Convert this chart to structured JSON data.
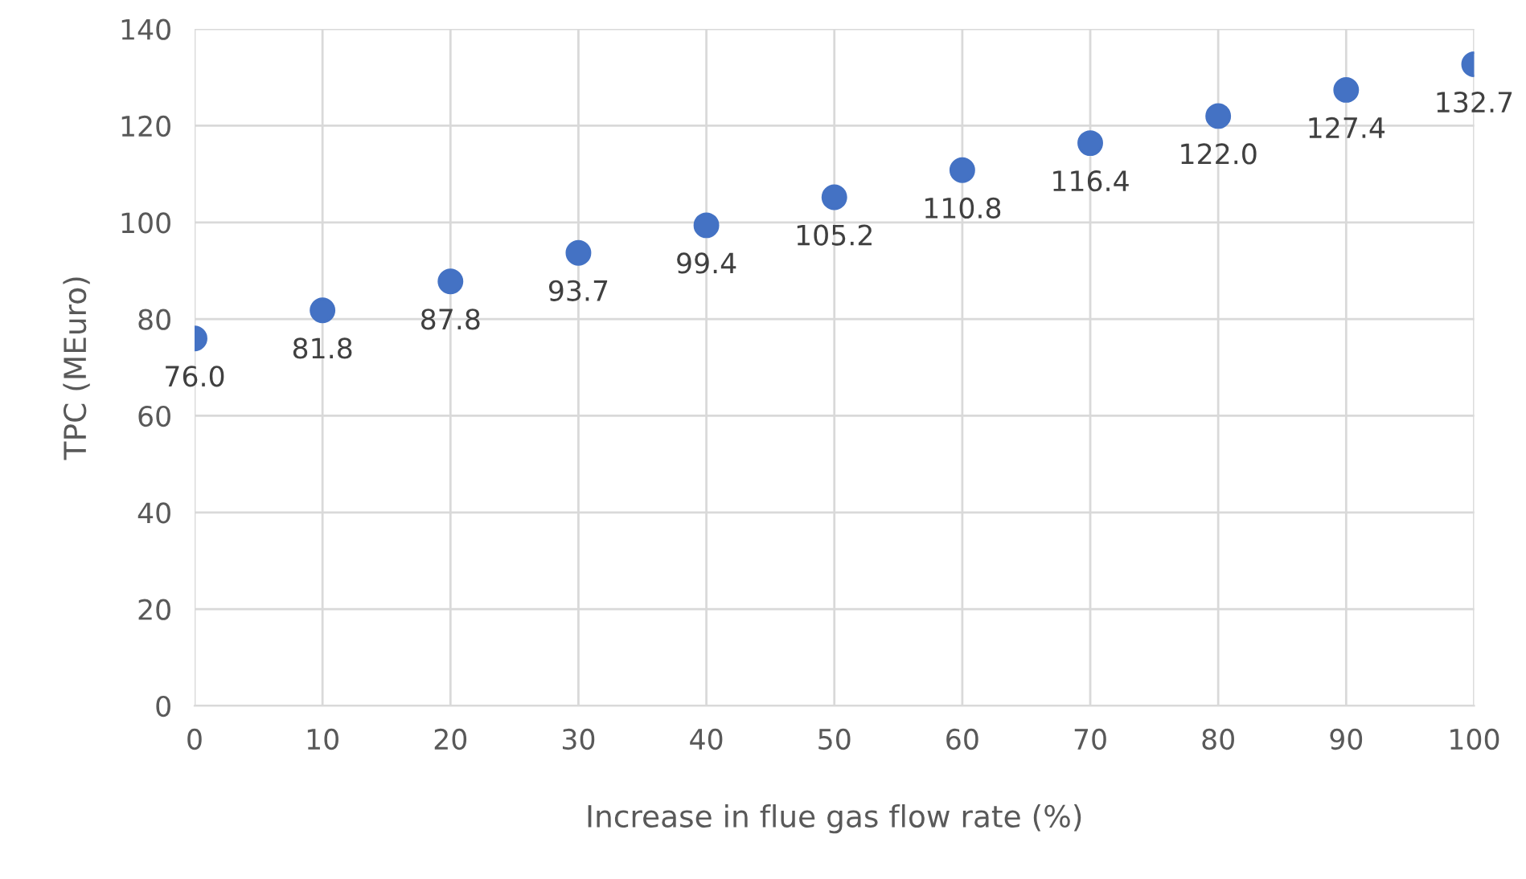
{
  "chart_data": {
    "type": "scatter",
    "xlabel": "Increase in flue gas flow rate (%)",
    "ylabel": "TPC (MEuro)",
    "x": [
      0,
      10,
      20,
      30,
      40,
      50,
      60,
      70,
      80,
      90,
      100
    ],
    "series": [
      {
        "color": "#4472c4",
        "values": [
          76.0,
          81.8,
          87.8,
          93.7,
          99.4,
          105.2,
          110.8,
          116.4,
          122.0,
          127.4,
          132.7
        ],
        "value_labels": [
          "76.0",
          "81.8",
          "87.8",
          "93.7",
          "99.4",
          "105.2",
          "110.8",
          "116.4",
          "122.0",
          "127.4",
          "132.7"
        ]
      }
    ],
    "xlim": [
      0,
      100
    ],
    "xticks": [
      0,
      10,
      20,
      30,
      40,
      50,
      60,
      70,
      80,
      90,
      100
    ],
    "ylim": [
      0,
      140
    ],
    "yticks": [
      0,
      20,
      40,
      60,
      80,
      100,
      120,
      140
    ],
    "grid": true,
    "marker": "circle"
  }
}
